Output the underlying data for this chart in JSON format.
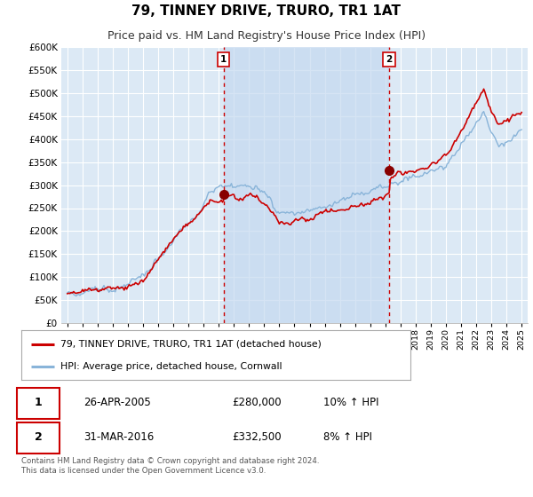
{
  "title": "79, TINNEY DRIVE, TRURO, TR1 1AT",
  "subtitle": "Price paid vs. HM Land Registry's House Price Index (HPI)",
  "title_fontsize": 11,
  "subtitle_fontsize": 9,
  "background_color": "#ffffff",
  "plot_background_color": "#dce9f5",
  "shade_color": "#c5d9f0",
  "grid_color": "#ffffff",
  "ylim": [
    0,
    600000
  ],
  "yticks": [
    0,
    50000,
    100000,
    150000,
    200000,
    250000,
    300000,
    350000,
    400000,
    450000,
    500000,
    550000,
    600000
  ],
  "sale1_date": 2005.32,
  "sale1_price": 280000,
  "sale1_label": "1",
  "sale2_date": 2016.25,
  "sale2_price": 332500,
  "sale2_label": "2",
  "legend_line1": "79, TINNEY DRIVE, TRURO, TR1 1AT (detached house)",
  "legend_line2": "HPI: Average price, detached house, Cornwall",
  "footer": "Contains HM Land Registry data © Crown copyright and database right 2024.\nThis data is licensed under the Open Government Licence v3.0.",
  "line_color_price": "#cc0000",
  "line_color_hpi": "#89b4d9",
  "vline_color": "#cc0000",
  "marker_color_price": "#880000",
  "box_color": "#cc0000",
  "sale1_date_str": "26-APR-2005",
  "sale1_price_str": "£280,000",
  "sale1_pct_str": "10% ↑ HPI",
  "sale2_date_str": "31-MAR-2016",
  "sale2_price_str": "£332,500",
  "sale2_pct_str": "8% ↑ HPI"
}
